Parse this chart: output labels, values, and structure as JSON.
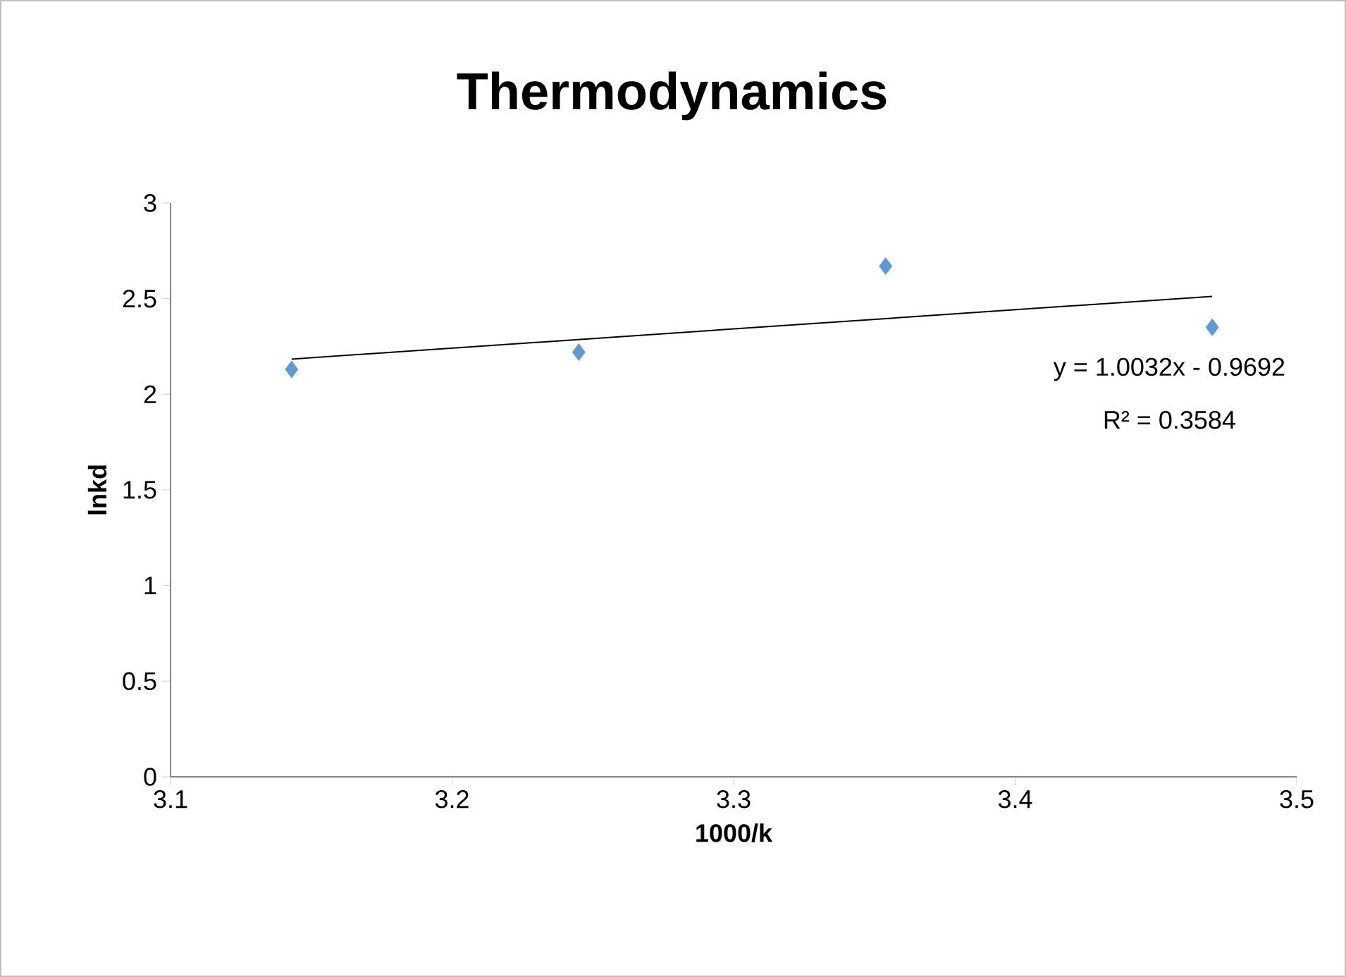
{
  "chart_data": {
    "type": "scatter",
    "title": "Thermodynamics",
    "xlabel": "1000/k",
    "ylabel": "lnkd",
    "x": [
      3.143,
      3.245,
      3.354,
      3.47
    ],
    "series": [
      {
        "color": "#5b9bd5",
        "values": [
          2.13,
          2.22,
          2.67,
          2.35
        ]
      },
      {
        "type": "line",
        "color": "#000000",
        "marker": "none",
        "line_style": "solid",
        "x": [
          3.143,
          3.47
        ],
        "values": [
          2.184,
          2.512
        ]
      }
    ],
    "marker": "diamond",
    "xlim": [
      3.1,
      3.5
    ],
    "xticks": [
      3.1,
      3.2,
      3.3,
      3.4,
      3.5
    ],
    "ylim": [
      0,
      3
    ],
    "yticks": [
      0,
      0.5,
      1,
      1.5,
      2,
      2.5,
      3
    ],
    "annotations": [
      "y = 1.0032x - 0.9692",
      "R² = 0.3584"
    ]
  }
}
